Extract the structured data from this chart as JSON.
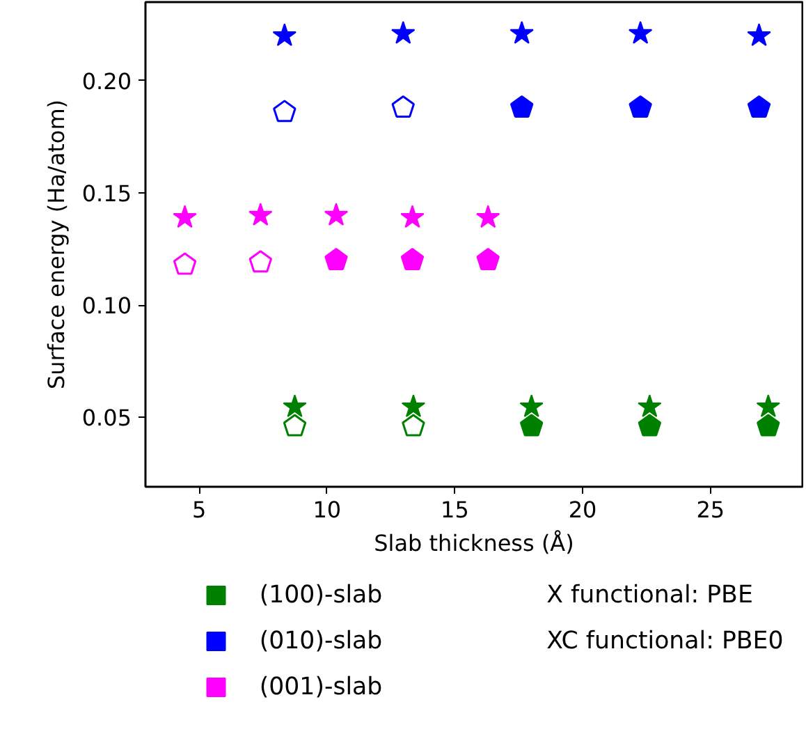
{
  "chart_data": {
    "type": "scatter",
    "xlabel": "Slab thickness (Å)",
    "ylabel": "Surface energy (Ha/atom)",
    "xlim": [
      2.9,
      28.6
    ],
    "ylim": [
      0.019,
      0.235
    ],
    "xticks": [
      5,
      10,
      15,
      20,
      25
    ],
    "yticks": [
      0.05,
      {
        "value": 0.1,
        "label": "0.10"
      },
      0.15,
      {
        "value": 0.2,
        "label": "0.20"
      }
    ],
    "grid": false,
    "legend": "bottom",
    "annotations": [
      "X functional: PBE",
      "XC functional: PBE0"
    ],
    "series": [
      {
        "name": "(100)-slab",
        "color": "#008000",
        "x": [
          18.0,
          22.62,
          27.26
        ],
        "values": [
          0.046,
          0.046,
          0.046
        ]
      },
      {
        "color": "#008000",
        "x": [
          8.74,
          13.38
        ],
        "values": [
          0.046,
          0.046
        ]
      },
      {
        "color": "#008000",
        "marker": "star",
        "x": [
          8.74,
          13.38,
          18.0,
          22.62,
          27.26
        ],
        "values": [
          0.0546,
          0.0546,
          0.0546,
          0.0546,
          0.0546
        ]
      },
      {
        "name": "(010)-slab",
        "color": "#0000ff",
        "x": [
          17.62,
          22.26,
          26.9
        ],
        "values": [
          0.188,
          0.188,
          0.188
        ]
      },
      {
        "color": "#0000ff",
        "x": [
          8.34,
          12.98
        ],
        "values": [
          0.186,
          0.188
        ]
      },
      {
        "color": "#0000ff",
        "marker": "star",
        "x": [
          8.34,
          12.98,
          17.62,
          22.26,
          26.9
        ],
        "values": [
          0.22,
          0.221,
          0.221,
          0.221,
          0.22
        ]
      },
      {
        "name": "(001)-slab",
        "color": "#ff00ff",
        "x": [
          10.36,
          13.34,
          16.3
        ],
        "values": [
          0.12,
          0.12,
          0.12
        ]
      },
      {
        "color": "#ff00ff",
        "x": [
          4.44,
          7.4
        ],
        "values": [
          0.118,
          0.119
        ]
      },
      {
        "color": "#ff00ff",
        "marker": "star",
        "x": [
          4.44,
          7.4,
          10.36,
          13.34,
          16.3
        ],
        "values": [
          0.139,
          0.14,
          0.14,
          0.139,
          0.139
        ]
      }
    ]
  }
}
